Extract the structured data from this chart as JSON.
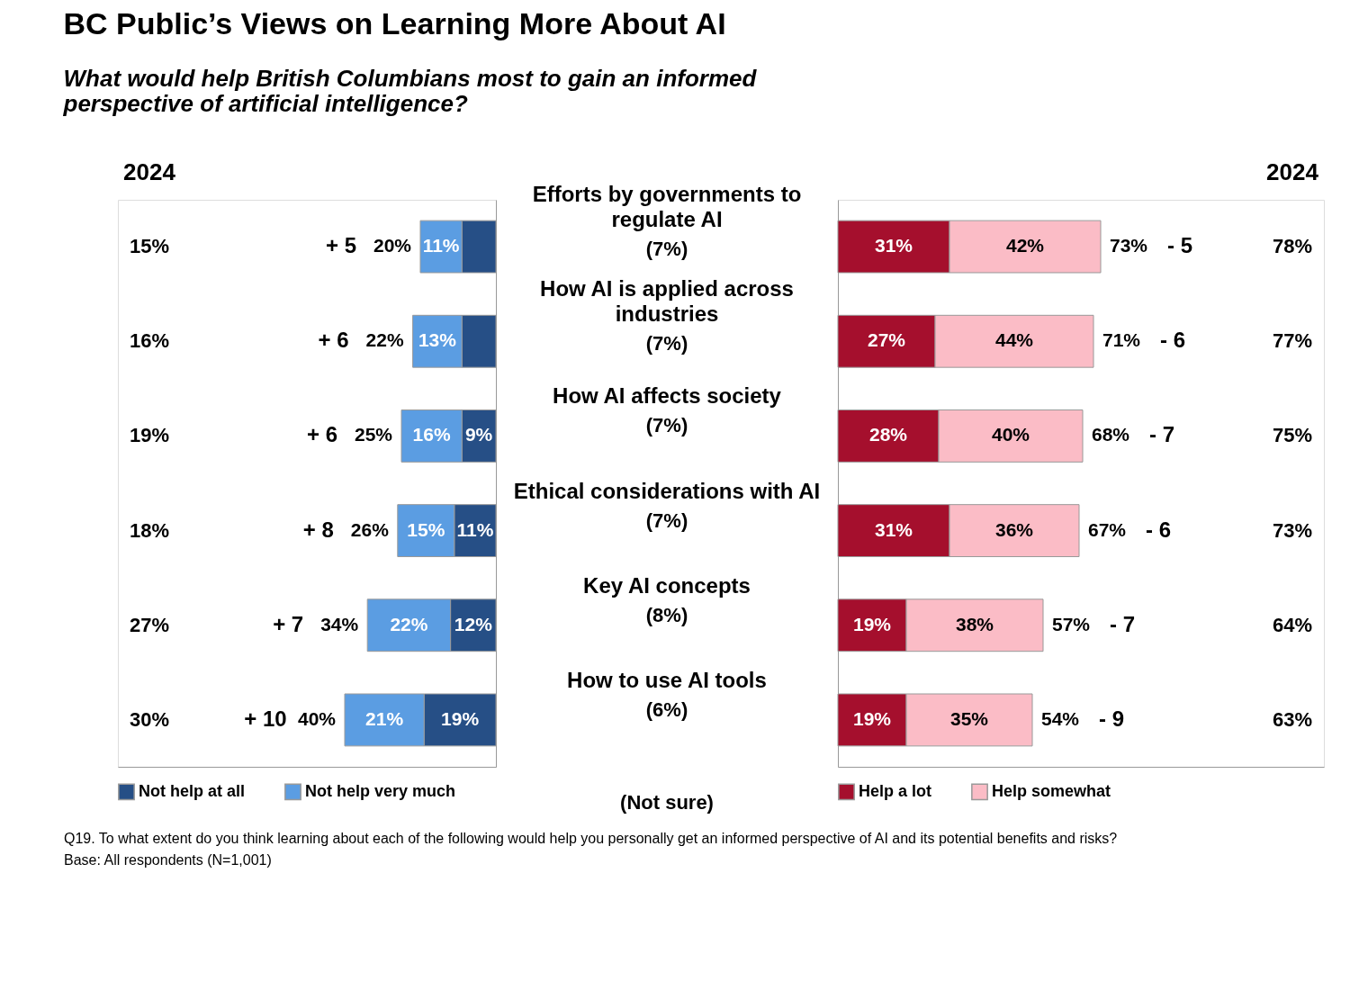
{
  "chart_data": [
    {
      "type": "bar",
      "orientation": "horizontal",
      "stacked": true,
      "title": "BC Public’s Views on Learning More About AI",
      "subtitle": "What would help British Columbians most to gain an informed perspective of artificial intelligence?",
      "categories": [
        "Efforts by governments to regulate AI",
        "How AI is applied across industries",
        "How AI affects society",
        "Ethical considerations with AI",
        "Key AI concepts",
        "How to use AI tools"
      ],
      "series": [
        {
          "name": "Not help at all",
          "color": "#264f86",
          "values": [
            9,
            9,
            9,
            11,
            12,
            19
          ],
          "value_labels": [
            null,
            null,
            "9%",
            "11%",
            "12%",
            "19%"
          ]
        },
        {
          "name": "Not help very much",
          "color": "#5b9de2",
          "values": [
            11,
            13,
            16,
            15,
            22,
            21
          ],
          "value_labels": [
            "11%",
            "13%",
            "16%",
            "15%",
            "22%",
            "21%"
          ]
        }
      ],
      "totals": [
        "20%",
        "22%",
        "25%",
        "26%",
        "34%",
        "40%"
      ],
      "xlim": [
        100,
        0
      ],
      "tick_labels": "y",
      "legend": "bottom",
      "annotations": [
        "2024",
        "15%",
        "16%",
        "19%",
        "18%",
        "27%",
        "30%",
        "+ 5",
        "+ 6",
        "+ 6",
        "+ 8",
        "+ 7",
        "+ 10",
        "(7%)",
        "(7%)",
        "(7%)",
        "(7%)",
        "(8%)",
        "(6%)",
        "Q19. To what extent do you think learning about each of the following would help you personally get an informed perspective of AI and its potential benefits and risks?",
        "Base:  All respondents (N=1,001)"
      ]
    },
    {
      "type": "bar",
      "orientation": "horizontal",
      "stacked": true,
      "categories": [
        null,
        null,
        null,
        null,
        null,
        null
      ],
      "series": [
        {
          "name": "Help a lot",
          "color": "#a50f2d",
          "values": [
            31,
            27,
            28,
            31,
            19,
            19
          ],
          "value_labels": [
            "31%",
            "27%",
            "28%",
            "31%",
            "19%",
            "19%"
          ]
        },
        {
          "name": "Help somewhat",
          "color": "#fbbcc6",
          "values": [
            42,
            44,
            40,
            36,
            38,
            35
          ],
          "value_labels": [
            "42%",
            "44%",
            "40%",
            "36%",
            "38%",
            "35%"
          ]
        }
      ],
      "totals": [
        "73%",
        "71%",
        "68%",
        "67%",
        "57%",
        "54%"
      ],
      "xlim": [
        0,
        135
      ],
      "tick_labels": false,
      "legend": "bottom",
      "annotations": [
        "2024",
        "78%",
        "77%",
        "75%",
        "73%",
        "64%",
        "63%",
        "- 5",
        "- 6",
        "- 7",
        "- 6",
        "- 7",
        "- 9",
        "(Not sure)"
      ]
    }
  ]
}
